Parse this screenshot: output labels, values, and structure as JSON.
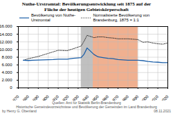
{
  "chart_data": {
    "type": "line",
    "title": "Nuthe-Urstromtal: Bevölkerungsentwicklung seit 1875 auf der\nFläche der heutigen Gebietskörperschaft",
    "x": [
      1875,
      1880,
      1885,
      1890,
      1895,
      1900,
      1905,
      1910,
      1919,
      1925,
      1933,
      1936,
      1939,
      1946,
      1950,
      1955,
      1960,
      1965,
      1970,
      1975,
      1980,
      1985,
      1990,
      1995,
      2000,
      2005,
      2010,
      2015,
      2020
    ],
    "series": [
      {
        "name": "Bevölkerung von Nuthe-\nUrstromtal",
        "color": "#1a5ea8",
        "line_style": "solid",
        "values": [
          7200,
          7150,
          7200,
          7250,
          7300,
          7350,
          7400,
          7500,
          7500,
          7700,
          7900,
          8800,
          10400,
          8700,
          8100,
          7900,
          7700,
          7600,
          7400,
          7300,
          7200,
          7200,
          7200,
          7100,
          6900,
          6750,
          6700,
          6600,
          6600
        ]
      },
      {
        "name": "Normalisierte Bevölkerung von\nBrandenburg, 1875 = 1:1",
        "color": "#333333",
        "line_style": "dotted",
        "values": [
          7200,
          7600,
          7900,
          8200,
          8600,
          9000,
          9400,
          9800,
          9700,
          10200,
          10900,
          12200,
          13700,
          13100,
          13300,
          13300,
          13100,
          13000,
          12800,
          12800,
          12800,
          12700,
          12600,
          11900,
          12000,
          11700,
          11500,
          11400,
          11700
        ]
      }
    ],
    "spans": [
      {
        "start": 1933,
        "end": 1945,
        "color": "#c0c0c0"
      },
      {
        "start": 1945,
        "end": 1990,
        "color": "#f0b090"
      }
    ],
    "xlim": [
      1870,
      2020
    ],
    "xticks": [
      1870,
      1880,
      1890,
      1900,
      1910,
      1920,
      1930,
      1940,
      1950,
      1960,
      1970,
      1980,
      1990,
      2000,
      2010,
      2020
    ],
    "ylim": [
      0,
      16000
    ],
    "yticks": [
      0,
      {
        "value": 2000,
        "label": "2.000"
      },
      {
        "value": 4000,
        "label": "4.000"
      },
      {
        "value": 6000,
        "label": "6.000"
      },
      {
        "value": 8000,
        "label": "8.000"
      },
      {
        "value": 10000,
        "label": "10.000"
      },
      {
        "value": 12000,
        "label": "12.000"
      },
      {
        "value": 14000,
        "label": "14.000"
      },
      {
        "value": 16000,
        "label": "16.000"
      }
    ],
    "grid": true,
    "legend": "upper left",
    "caption": [
      "Quellen: Amt für Statistik Berlin-Brandenburg",
      "Historische Gemeindevorzeichnisse und Bevölkerung der Gemeinden im Land Brandenburg"
    ],
    "annotations": [
      "by Henry G. Obenland",
      "08.11.2021"
    ]
  }
}
